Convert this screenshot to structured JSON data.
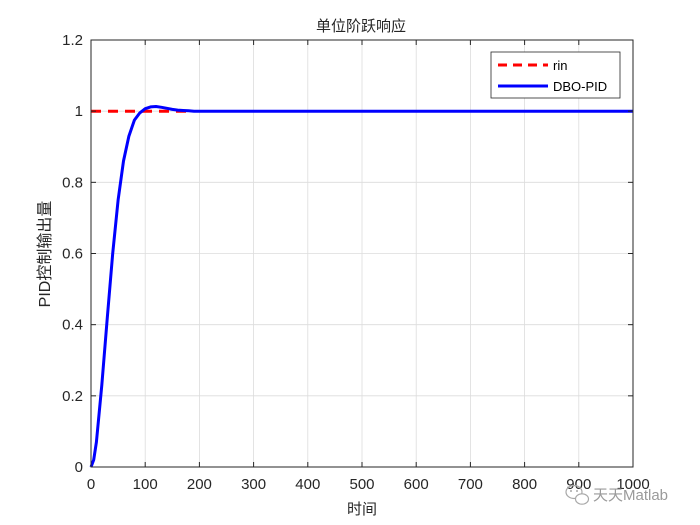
{
  "chart_data": {
    "type": "line",
    "title": "单位阶跃响应",
    "xlabel": "时间",
    "ylabel": "PID控制输出量",
    "xlim": [
      0,
      1000
    ],
    "ylim": [
      0,
      1.2
    ],
    "xticks": [
      0,
      100,
      200,
      300,
      400,
      500,
      600,
      700,
      800,
      900,
      1000
    ],
    "yticks": [
      0,
      0.2,
      0.4,
      0.6,
      0.8,
      1,
      1.2
    ],
    "xtick_labels": [
      "0",
      "100",
      "200",
      "300",
      "400",
      "500",
      "600",
      "700",
      "800",
      "900",
      "1000"
    ],
    "ytick_labels": [
      "0",
      "0.2",
      "0.4",
      "0.6",
      "0.8",
      "1",
      "1.2"
    ],
    "grid": true,
    "legend_position": "top-right",
    "series": [
      {
        "name": "rin",
        "color": "#ff0000",
        "style": "dashed",
        "x": [
          0,
          185
        ],
        "y": [
          1,
          1
        ]
      },
      {
        "name": "DBO-PID",
        "color": "#0000ff",
        "style": "solid",
        "x": [
          0,
          5,
          10,
          20,
          30,
          40,
          50,
          60,
          70,
          80,
          90,
          100,
          110,
          120,
          130,
          140,
          150,
          160,
          170,
          180,
          190,
          200,
          220,
          250,
          300,
          400,
          500,
          600,
          700,
          800,
          900,
          1000
        ],
        "y": [
          0,
          0.02,
          0.07,
          0.23,
          0.42,
          0.6,
          0.75,
          0.86,
          0.93,
          0.975,
          0.995,
          1.007,
          1.012,
          1.013,
          1.011,
          1.008,
          1.005,
          1.003,
          1.002,
          1.001,
          1.0,
          1.0,
          1.0,
          1.0,
          1.0,
          1.0,
          1.0,
          1.0,
          1.0,
          1.0,
          1.0,
          1.0
        ]
      }
    ]
  },
  "watermark": {
    "icon": "wechat-icon",
    "text": "天天Matlab"
  }
}
